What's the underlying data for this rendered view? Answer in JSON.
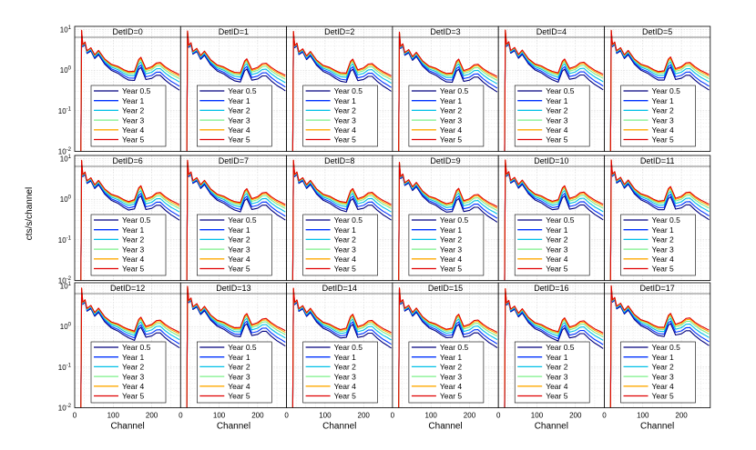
{
  "chart_data": {
    "type": "line",
    "layout": "3x6 grid of small multiples",
    "panels": [
      {
        "title": "DetID=0"
      },
      {
        "title": "DetID=1"
      },
      {
        "title": "DetID=2"
      },
      {
        "title": "DetID=3"
      },
      {
        "title": "DetID=4"
      },
      {
        "title": "DetID=5"
      },
      {
        "title": "DetID=6"
      },
      {
        "title": "DetID=7"
      },
      {
        "title": "DetID=8"
      },
      {
        "title": "DetID=9"
      },
      {
        "title": "DetID=10"
      },
      {
        "title": "DetID=11"
      },
      {
        "title": "DetID=12"
      },
      {
        "title": "DetID=13"
      },
      {
        "title": "DetID=14"
      },
      {
        "title": "DetID=15"
      },
      {
        "title": "DetID=16"
      },
      {
        "title": "DetID=17"
      }
    ],
    "xlabel": "Channel",
    "ylabel": "cts/s/channel",
    "xlim": [
      0,
      275
    ],
    "ylim_log": [
      0.01,
      12
    ],
    "xticks": [
      0,
      100,
      200
    ],
    "xtick_labels": [
      "0",
      "100",
      "200"
    ],
    "yticks": [
      0.01,
      0.1,
      1,
      10
    ],
    "ytick_labels": [
      {
        "base": "10",
        "exp": "-2"
      },
      {
        "base": "10",
        "exp": "-1"
      },
      {
        "base": "10",
        "exp": "0"
      },
      {
        "base": "10",
        "exp": "1"
      }
    ],
    "grid": true,
    "legend_position": "lower-left",
    "series": [
      {
        "name": "Year 0.5",
        "color": "#00007f",
        "scale": 0.62
      },
      {
        "name": "Year 1",
        "color": "#0033ff",
        "scale": 0.72
      },
      {
        "name": "Year 2",
        "color": "#00c0e8",
        "scale": 0.85
      },
      {
        "name": "Year 3",
        "color": "#7cf08a",
        "scale": 0.97
      },
      {
        "name": "Year 4",
        "color": "#ffa800",
        "scale": 1.06
      },
      {
        "name": "Year 5",
        "color": "#e00000",
        "scale": 1.13
      }
    ],
    "shape_points": [
      {
        "x": 16,
        "y": 0.01
      },
      {
        "x": 18,
        "y": 9.0
      },
      {
        "x": 21,
        "y": 4.0
      },
      {
        "x": 27,
        "y": 4.6
      },
      {
        "x": 32,
        "y": 2.8
      },
      {
        "x": 42,
        "y": 3.3
      },
      {
        "x": 52,
        "y": 2.2
      },
      {
        "x": 62,
        "y": 2.8
      },
      {
        "x": 78,
        "y": 1.7
      },
      {
        "x": 95,
        "y": 1.25
      },
      {
        "x": 112,
        "y": 1.1
      },
      {
        "x": 128,
        "y": 0.9
      },
      {
        "x": 140,
        "y": 0.8
      },
      {
        "x": 155,
        "y": 0.78
      },
      {
        "x": 166,
        "y": 1.5
      },
      {
        "x": 172,
        "y": 1.7
      },
      {
        "x": 185,
        "y": 0.92
      },
      {
        "x": 200,
        "y": 1.02
      },
      {
        "x": 212,
        "y": 1.25
      },
      {
        "x": 222,
        "y": 1.28
      },
      {
        "x": 235,
        "y": 1.0
      },
      {
        "x": 250,
        "y": 0.8
      },
      {
        "x": 262,
        "y": 0.7
      },
      {
        "x": 272,
        "y": 0.62
      }
    ]
  }
}
